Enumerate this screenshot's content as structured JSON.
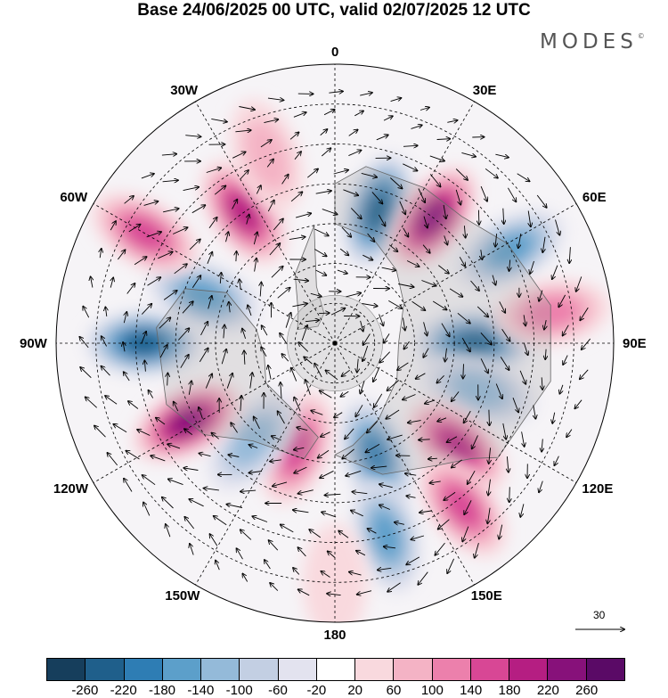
{
  "title": "Base 24/06/2025 00 UTC, valid 02/07/2025 12 UTC",
  "brand": "MODES",
  "brand_mark": "©",
  "longitude_labels": [
    {
      "text": "0",
      "lon": 0
    },
    {
      "text": "30E",
      "lon": 30
    },
    {
      "text": "60E",
      "lon": 60
    },
    {
      "text": "90E",
      "lon": 90
    },
    {
      "text": "120E",
      "lon": 120
    },
    {
      "text": "150E",
      "lon": 150
    },
    {
      "text": "180",
      "lon": 180
    },
    {
      "text": "150W",
      "lon": -150
    },
    {
      "text": "120W",
      "lon": -120
    },
    {
      "text": "90W",
      "lon": -90
    },
    {
      "text": "60W",
      "lon": -60
    },
    {
      "text": "30W",
      "lon": -30
    }
  ],
  "wind_reference": {
    "label": "30"
  },
  "colorbar": {
    "tick_labels": [
      "-260",
      "-220",
      "-180",
      "-140",
      "-100",
      "-60",
      "-20",
      "20",
      "60",
      "100",
      "140",
      "180",
      "220",
      "260"
    ],
    "colors": [
      "#163e5c",
      "#1f5f8b",
      "#2e7db4",
      "#5c9fca",
      "#94bad9",
      "#c3cfe3",
      "#e3e3ef",
      "#ffffff",
      "#f9d9de",
      "#f4b3c5",
      "#ec80ac",
      "#d84795",
      "#b51e82",
      "#87117a",
      "#5a0a66"
    ]
  },
  "anomalies": [
    {
      "lon": 18,
      "lat": 55,
      "value": -230
    },
    {
      "lon": 38,
      "lat": 50,
      "value": 250
    },
    {
      "lon": 62,
      "lat": 40,
      "value": -170
    },
    {
      "lon": 90,
      "lat": 55,
      "value": -240
    },
    {
      "lon": 82,
      "lat": 35,
      "value": 100
    },
    {
      "lon": 108,
      "lat": 52,
      "value": -110
    },
    {
      "lon": 130,
      "lat": 50,
      "value": 200
    },
    {
      "lon": 142,
      "lat": 38,
      "value": 150
    },
    {
      "lon": 160,
      "lat": 60,
      "value": -200
    },
    {
      "lon": 165,
      "lat": 40,
      "value": -150
    },
    {
      "lon": -160,
      "lat": 62,
      "value": 140
    },
    {
      "lon": -140,
      "lat": 58,
      "value": -120
    },
    {
      "lon": -118,
      "lat": 48,
      "value": 230
    },
    {
      "lon": -90,
      "lat": 42,
      "value": -240
    },
    {
      "lon": -70,
      "lat": 55,
      "value": -140
    },
    {
      "lon": -60,
      "lat": 35,
      "value": 140
    },
    {
      "lon": -35,
      "lat": 50,
      "value": 210
    },
    {
      "lon": -20,
      "lat": 40,
      "value": 60
    },
    {
      "lon": 180,
      "lat": 30,
      "value": 50
    }
  ]
}
